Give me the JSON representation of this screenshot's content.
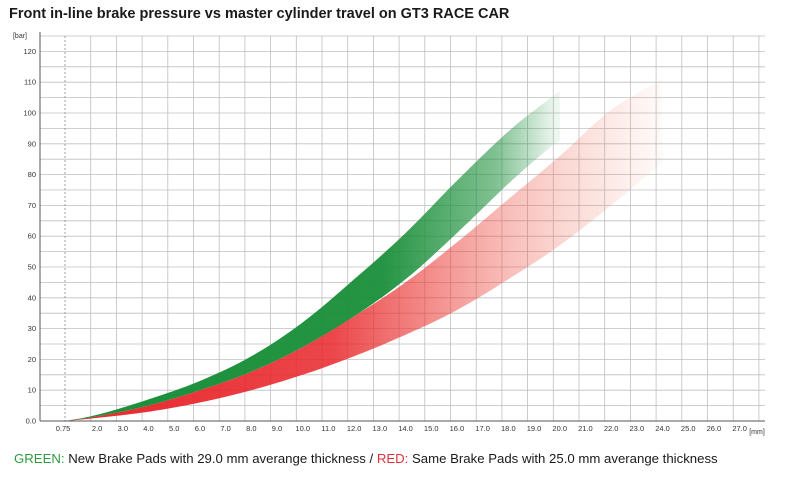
{
  "title": "Front in-line brake pressure vs master cylinder travel on GT3 RACE CAR",
  "caption": {
    "green_keyword": "GREEN:",
    "green_text": " New Brake Pads with 29.0 mm averange thickness / ",
    "red_keyword": "RED:",
    "red_text": " Same Brake Pads with 25.0 mm averange thickness"
  },
  "colors": {
    "green": "#1a8f3a",
    "red": "#e8262b",
    "grid": "#bfbfbf"
  },
  "chart_data": {
    "type": "area",
    "title": "Front in-line brake pressure vs master cylinder travel on GT3 RACE CAR",
    "xunit": "[mm]",
    "yunit": "[bar]",
    "xlim": [
      0,
      27.5
    ],
    "ylim": [
      0,
      125
    ],
    "grid": true,
    "x_tick_labels": [
      "0.75",
      "2.0",
      "3.0",
      "4.0",
      "5.0",
      "6.0",
      "7.0",
      "8.0",
      "9.0",
      "10.0",
      "11.0",
      "12.0",
      "13.0",
      "14.0",
      "15.0",
      "16.0",
      "17.0",
      "18.0",
      "19.0",
      "20.0",
      "21.0",
      "22.0",
      "23.0",
      "24.0",
      "25.0",
      "26.0",
      "27.0"
    ],
    "y_tick_labels": [
      "0.0",
      "10",
      "20",
      "30",
      "40",
      "50",
      "60",
      "70",
      "80",
      "90",
      "100",
      "110",
      "120"
    ],
    "series": [
      {
        "name": "GREEN",
        "color": "#1a8f3a",
        "upper": {
          "x": [
            0.75,
            2,
            4,
            6,
            8,
            10,
            12,
            14,
            16,
            18,
            19.5,
            20
          ],
          "y": [
            0,
            2,
            7,
            13,
            21,
            32,
            46,
            61,
            78,
            94,
            104,
            107
          ]
        },
        "lower": {
          "x": [
            0.75,
            2,
            4,
            6,
            8,
            10,
            12,
            14,
            16,
            18,
            19.5,
            20
          ],
          "y": [
            0,
            1.5,
            5,
            10,
            16,
            24,
            34,
            46,
            61,
            77,
            88,
            91
          ]
        }
      },
      {
        "name": "RED",
        "color": "#e8262b",
        "upper": {
          "x": [
            0.75,
            2,
            4,
            6,
            8,
            10,
            12,
            14,
            16,
            18,
            20,
            22,
            24
          ],
          "y": [
            0,
            1.5,
            5,
            10,
            16,
            24,
            34,
            45,
            58,
            72,
            86,
            101,
            111
          ]
        },
        "lower": {
          "x": [
            0.75,
            2,
            4,
            6,
            8,
            10,
            12,
            14,
            16,
            18,
            20,
            22,
            24
          ],
          "y": [
            0,
            1,
            3,
            6,
            10,
            15,
            21,
            28,
            36,
            46,
            57,
            70,
            84
          ]
        }
      }
    ]
  }
}
